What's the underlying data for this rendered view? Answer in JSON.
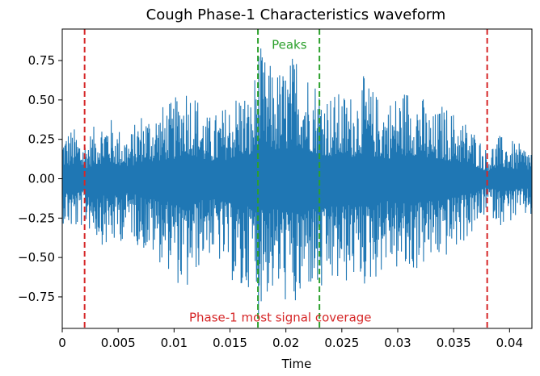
{
  "chart_data": {
    "type": "line",
    "title": "Cough Phase-1 Characteristics waveform",
    "xlabel": "Time",
    "ylabel": "",
    "xlim": [
      0,
      0.042
    ],
    "ylim": [
      -0.95,
      0.95
    ],
    "x_ticks": [
      0,
      0.005,
      0.01,
      0.015,
      0.02,
      0.025,
      0.03,
      0.035,
      0.04
    ],
    "x_tick_labels": [
      "0",
      "0.005",
      "0.01",
      "0.015",
      "0.02",
      "0.025",
      "0.03",
      "0.035",
      "0.04"
    ],
    "y_ticks": [
      0.75,
      0.5,
      0.25,
      0.0,
      -0.25,
      -0.5,
      -0.75
    ],
    "y_tick_labels": [
      "0.75",
      "0.50",
      "0.25",
      "0.00",
      "−0.25",
      "−0.50",
      "−0.75"
    ],
    "grid": false,
    "series": [
      {
        "color": "#1f77b4",
        "envelope": {
          "x": [
            0,
            0.001,
            0.002,
            0.003,
            0.004,
            0.005,
            0.006,
            0.007,
            0.008,
            0.009,
            0.01,
            0.011,
            0.012,
            0.013,
            0.014,
            0.015,
            0.016,
            0.017,
            0.0175,
            0.018,
            0.019,
            0.02,
            0.021,
            0.022,
            0.023,
            0.024,
            0.025,
            0.026,
            0.027,
            0.028,
            0.029,
            0.03,
            0.031,
            0.032,
            0.033,
            0.034,
            0.035,
            0.036,
            0.037,
            0.038,
            0.039,
            0.04,
            0.041,
            0.042
          ],
          "upper": [
            0.3,
            0.33,
            0.25,
            0.35,
            0.42,
            0.33,
            0.28,
            0.43,
            0.43,
            0.47,
            0.5,
            0.65,
            0.55,
            0.4,
            0.43,
            0.5,
            0.6,
            0.5,
            0.9,
            0.78,
            0.7,
            0.72,
            0.84,
            0.7,
            0.62,
            0.55,
            0.55,
            0.55,
            0.66,
            0.55,
            0.5,
            0.55,
            0.6,
            0.57,
            0.4,
            0.48,
            0.43,
            0.38,
            0.3,
            0.18,
            0.28,
            0.25,
            0.22,
            0.2
          ],
          "lower": [
            -0.28,
            -0.35,
            -0.3,
            -0.38,
            -0.45,
            -0.42,
            -0.35,
            -0.45,
            -0.5,
            -0.55,
            -0.62,
            -0.78,
            -0.6,
            -0.48,
            -0.55,
            -0.62,
            -0.82,
            -0.62,
            -0.88,
            -0.76,
            -0.75,
            -0.8,
            -0.9,
            -0.7,
            -0.8,
            -0.7,
            -0.7,
            -0.65,
            -0.7,
            -0.65,
            -0.55,
            -0.6,
            -0.65,
            -0.57,
            -0.55,
            -0.52,
            -0.48,
            -0.4,
            -0.35,
            -0.2,
            -0.3,
            -0.28,
            -0.25,
            -0.25
          ]
        }
      }
    ],
    "vlines": [
      {
        "x": 0.002,
        "color": "#d62728",
        "style": "dashed"
      },
      {
        "x": 0.038,
        "color": "#d62728",
        "style": "dashed"
      },
      {
        "x": 0.0175,
        "color": "#2ca02c",
        "style": "dashed"
      },
      {
        "x": 0.023,
        "color": "#2ca02c",
        "style": "dashed"
      }
    ],
    "annotations": [
      {
        "text": "Peaks",
        "x": 0.0203,
        "y": 0.85,
        "color": "#2ca02c"
      },
      {
        "text": "Phase-1 most signal coverage",
        "x": 0.0195,
        "y": -0.88,
        "color": "#d62728"
      }
    ]
  }
}
